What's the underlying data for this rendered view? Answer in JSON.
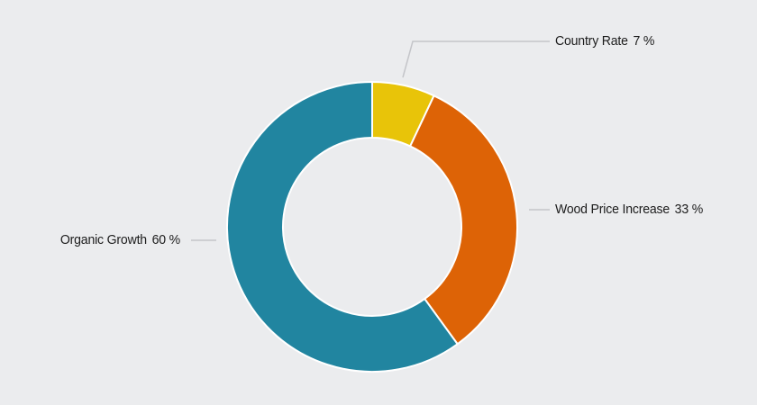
{
  "chart_data": {
    "type": "pie",
    "subtype": "donut",
    "title": "",
    "unit": "%",
    "direction": "clockwise",
    "start_angle_deg": 0,
    "inner_radius_ratio": 0.615,
    "background_color": "#ebecee",
    "separator_color": "#ffffff",
    "leader_line_color": "#c4c5c9",
    "label_text_color": "#1c1c1c",
    "series": [
      {
        "label": "Country Rate",
        "value": 7,
        "value_text": "7 %",
        "color": "#e8c409"
      },
      {
        "label": "Wood Price Increase",
        "value": 33,
        "value_text": "33 %",
        "color": "#dd6306"
      },
      {
        "label": "Organic Growth",
        "value": 60,
        "value_text": "60 %",
        "color": "#2185a0"
      }
    ]
  }
}
